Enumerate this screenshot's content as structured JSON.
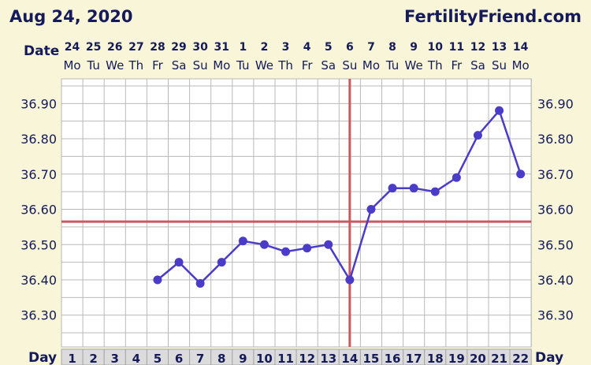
{
  "header": {
    "date": "Aug 24, 2020",
    "site": "FertilityFriend.com",
    "date_row_label": "Date",
    "day_row_label": "Day"
  },
  "colors": {
    "background": "#f8f5d8",
    "text": "#141a5a",
    "series": "#4a3cc8",
    "coverline": "#c9595e",
    "ovulation_line": "#c9595e",
    "grid": "#b9b9b9"
  },
  "chart_data": {
    "type": "line",
    "days": [
      1,
      2,
      3,
      4,
      5,
      6,
      7,
      8,
      9,
      10,
      11,
      12,
      13,
      14,
      15,
      16,
      17,
      18,
      19,
      20,
      21,
      22
    ],
    "dates": [
      "24",
      "25",
      "26",
      "27",
      "28",
      "29",
      "30",
      "31",
      "1",
      "2",
      "3",
      "4",
      "5",
      "6",
      "7",
      "8",
      "9",
      "10",
      "11",
      "12",
      "13",
      "14"
    ],
    "weekdays": [
      "Mo",
      "Tu",
      "We",
      "Th",
      "Fr",
      "Sa",
      "Su",
      "Mo",
      "Tu",
      "We",
      "Th",
      "Fr",
      "Sa",
      "Su",
      "Mo",
      "Tu",
      "We",
      "Th",
      "Fr",
      "Sa",
      "Su",
      "Mo"
    ],
    "series": [
      {
        "values": [
          null,
          null,
          null,
          null,
          36.4,
          36.45,
          36.39,
          36.45,
          36.51,
          36.5,
          36.48,
          36.49,
          36.5,
          36.4,
          36.6,
          36.66,
          36.66,
          36.65,
          36.69,
          36.81,
          36.88,
          36.7
        ]
      }
    ],
    "yticks": [
      "36.30",
      "36.40",
      "36.50",
      "36.60",
      "36.70",
      "36.80",
      "36.90"
    ],
    "ylim": [
      36.21,
      36.97
    ],
    "coverline": 36.565,
    "ovulation_day": 14,
    "grid": true
  }
}
